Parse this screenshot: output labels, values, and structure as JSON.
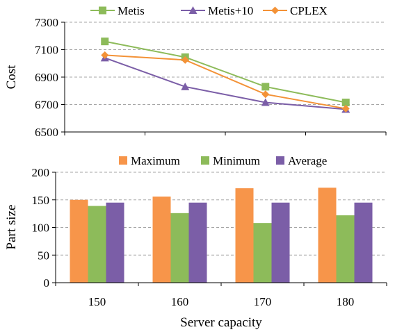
{
  "chart_data": [
    {
      "type": "line",
      "categories": [
        "150",
        "160",
        "170",
        "180"
      ],
      "ylabel": "Cost",
      "ylim": [
        6500,
        7300
      ],
      "yticks": [
        6500,
        6700,
        6900,
        7100,
        7300
      ],
      "grid": "horizontal dashed",
      "legend": "top-center",
      "series": [
        {
          "name": "Metis",
          "values": [
            7160,
            7045,
            6830,
            6715
          ],
          "color": "#8dbb5a",
          "marker": "square"
        },
        {
          "name": "Metis+10",
          "values": [
            7040,
            6830,
            6715,
            6665
          ],
          "color": "#7b5ea7",
          "marker": "triangle"
        },
        {
          "name": "CPLEX",
          "values": [
            7060,
            7025,
            6775,
            6670
          ],
          "color": "#f39237",
          "marker": "diamond"
        }
      ]
    },
    {
      "type": "bar",
      "categories": [
        "150",
        "160",
        "170",
        "180"
      ],
      "xlabel": "Server capacity",
      "ylabel": "Part size",
      "ylim": [
        0,
        200
      ],
      "yticks": [
        0,
        50,
        100,
        150,
        200
      ],
      "grid": "horizontal dashed",
      "legend": "top-center",
      "series": [
        {
          "name": "Maximum",
          "values": [
            150,
            156,
            171,
            172
          ],
          "color": "#f7954a"
        },
        {
          "name": "Minimum",
          "values": [
            139,
            126,
            108,
            122
          ],
          "color": "#8dbb5a"
        },
        {
          "name": "Average",
          "values": [
            145,
            145,
            145,
            145
          ],
          "color": "#7b5ea7"
        }
      ]
    }
  ]
}
